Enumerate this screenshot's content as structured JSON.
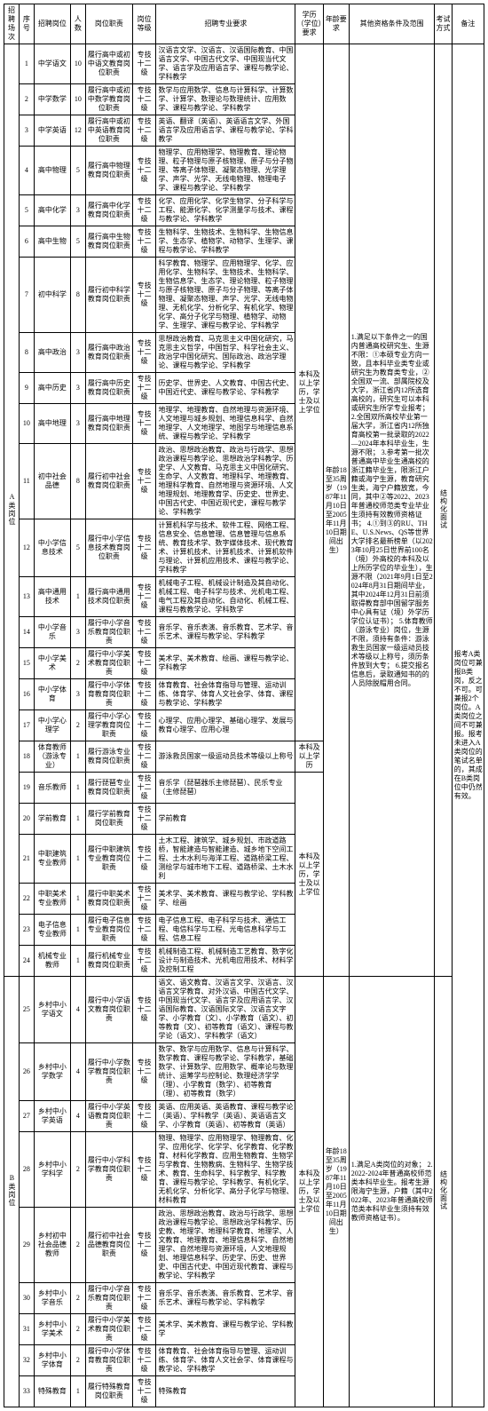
{
  "headers": {
    "col1": "招聘场次",
    "col2": "序号",
    "col3": "招聘岗位",
    "col4": "人数",
    "col5": "岗位职责",
    "col6": "岗位等级",
    "col7": "招聘专业要求",
    "col8": "学历（学位）要求",
    "col9": "年龄要求",
    "col10": "其他资格条件及范围",
    "col11": "考试方式",
    "col12": "备注"
  },
  "catA": "A类岗位",
  "catB": "B类岗位",
  "gradeA": "专技十二级",
  "gradeB": "专技十二级",
  "eduA": "本科及以上学历，学士及以上学位",
  "eduA2": "本科及以上学历",
  "eduB": "本科及以上学历，学士及以上学位",
  "ageA": "年龄18至35周岁（1987年11月10日至2005年11月10日期间出生）",
  "condA": "1.满足以下条件之一的国内普通高校研究生、生源不限：①本硕专业方向一致，且本科毕业类专业或研究生为教育类专业，②全国双一流、部属院校及大学，浙江省内12所选育高校的，研究生可以本科或研究生所学专业报考；\n2.全国双所高校毕业第一届大学，浙江省内12所独育高校第一批录取的2022—2024年本科毕业生，生源不限；\n3.参考第一批次普通高中毕业生通高校的浙江籍毕业生，限浙江户籍或海宁生源，教育研究生类，海宁户籍放宽，今同，其中②等2022、2023年普通校师范类专业毕业生须持有效教师资格证书；\n4.①到③的RU、THE、U.S.News、QS等世界大学排名最新榜单（以2023年10月25日世界前100名（境）外高校的本科及以上所历学位的毕业生），生源不限（2021年9月1日至2024年8月31日期间毕业，其中2024年12月31日前须取得教育部中国留学服务中心具有证（境）外学历学位认证书）；\n5.体育教师（游泳专业）岗位，生源不限，须持有条件：游泳救生员国家一级运动员技术等级以上称号，须历条件放到大专；\n6.提交报名信息后，录取通知书的的人员除脱帽用合同。",
  "examA": "结构化面试",
  "remarkA": "报考A类岗位可兼报B类岗，反之不可。可兼报2个岗位。A类岗位之间不可兼报。报考未进入A类岗位的笔试名单的，其成在B类岗位中仍然有效。",
  "condB": "1.满足A类岗位的对象；\n2.2022-2024年普通高校师范类本科毕业生。报考生源限海宁生源，户籍（其中2022年、2023年普通高校师范类本科毕业生须持有效教师资格证书）。",
  "examB": "结构化面试",
  "rowsA": [
    {
      "n": "1",
      "post": "中学语文",
      "num": "10",
      "duty": "履行高中或初中语文教育岗位职责",
      "req": "汉语言文学、汉语言、汉语国际教育、中国语言文学、中国古代文学、中国现当代文学、语言学及应用语言学、课程与教学论、学科教学"
    },
    {
      "n": "2",
      "post": "中学数学",
      "num": "10",
      "duty": "履行高中或初中数学教育岗位职责",
      "req": "数学与应用数学、信息与计算科学、计算数学、计算学、数理论与数理统计、应用数学、课程与教学论、学科教学"
    },
    {
      "n": "3",
      "post": "中学英语",
      "num": "12",
      "duty": "履行高中或初中英语教育岗位职责",
      "req": "英语、翻译（英语）、英语语言文学、外国语言学及应用语言学、课程与教学论、学科教学"
    },
    {
      "n": "4",
      "post": "高中物理",
      "num": "5",
      "duty": "履行高中物理教育岗位职责",
      "req": "物理学、应用物理学、物理教育、理论物理、粒子物理与原子核物理、原子与分子物理、等离子体物理、凝聚态物理、光学理学、声学、光学、无线电物理、物理电子学、课程与教学论、学科教学"
    },
    {
      "n": "5",
      "post": "高中化学",
      "num": "3",
      "duty": "履行高中化学教育岗位职责",
      "req": "化学、应用化学、化学生物学、分子科学与工程、能源化学、化学测量学与技术、课程与教学论、学科教学"
    },
    {
      "n": "6",
      "post": "高中生物",
      "num": "5",
      "duty": "履行高中生物教育岗位职责",
      "req": "生物科学、生物技术、生物科学、生物信息学、生态学、植物学、动物学、生理学、课程与教学论、学科教学"
    },
    {
      "n": "7",
      "post": "初中科学",
      "num": "8",
      "duty": "履行初中科学教育岗位职责",
      "req": "科学教育、物理学、应用物理学、化学、应用化学、生物科学、生物技术、生物科学、生物信息学、生态学、理论物理、粒子物理与原子核物理、原子与分子物理、等离子体物理、凝聚态物理、声学、光学、无线电物理、无机化学、分析化学、有机化学、物理化学、高分子化学与物理、植物学、动物学、生理学、课程与教学论、学科教学"
    },
    {
      "n": "8",
      "post": "高中政治",
      "num": "3",
      "duty": "履行高中政治教育岗位职责",
      "req": "思想政治教育、马克思主义中国化研究，马克思主义哲学，中国哲学、科学社会主义、政治学中国化研究、国际政治、政治学理论、课程与教学论、学科教学"
    },
    {
      "n": "9",
      "post": "高中历史",
      "num": "3",
      "duty": "履行高中历史教育岗位职责",
      "req": "历史学、世界史、人文教育、中国古代史、中国近代史、课程与教学论、学科教学"
    },
    {
      "n": "10",
      "post": "高中地理",
      "num": "3",
      "duty": "履行高中地理教育岗位职责",
      "req": "地理学、地理教育、自然地理与资源环境、人文地理与城乡规划、地理信息科学、自然地理学、人文地理学、地图学与地理信息系统、课程与教学论、学科教学"
    },
    {
      "n": "11",
      "post": "初中社会品德",
      "num": "8",
      "duty": "履行初中社会教育岗位职责",
      "req": "政治、思想政治教育、政治与行政学、思想政治课程与教学论、思想政治学科教学、历史学、人文教育、马克思主义中国化研究、生命学、人文教育、地理科学、地理教育、地理科学教育、自然地理与资源环境、人文地理规划、地理教育学、历史史、世界史、中国古代史、中国近现代史，课程与教学论、学科教学"
    },
    {
      "n": "12",
      "post": "中小学信息技术",
      "num": "5",
      "duty": "履行中小学信息技术教育岗位职责",
      "req": "计算机科学与技术、软件工程、网络工程、信息安全、信息管理、信息管理与信息系统、教育技术学、数字媒体技术、现代教育术、计算机技术、计算机技术、计算机软件与理论、计算机应用技术、课程与教学论、学科教学"
    },
    {
      "n": "13",
      "post": "高中通用技术",
      "num": "1",
      "duty": "履行高中通用技术岗位职责",
      "req": "机械电子工程、机械设计制造及其自动化、机械工程、电子科学与技术、光机电工程、电气工程及其自动化、自动化、机械工程、课程与教教学论、学科数学"
    },
    {
      "n": "14",
      "post": "中小学音乐",
      "num": "3",
      "duty": "履行中小学音乐教育岗位职责",
      "req": "音乐学、音乐表演、音乐教育、艺术学、音乐艺术、课程与教学论、学科教学"
    },
    {
      "n": "15",
      "post": "中小学美术",
      "num": "2",
      "duty": "履行中小学美术教育岗位职责",
      "req": "美术学、美术教育、绘画、课程与教学论、学科教学"
    },
    {
      "n": "16",
      "post": "中小学体育",
      "num": "3",
      "duty": "履行中小学体育教育岗位职责",
      "req": "体育教育、社会体育指导与管理、运动训练、体育学、体育人文社会学、体育、课程与教学论、学科教学"
    },
    {
      "n": "17",
      "post": "中小学心理学",
      "num": "2",
      "duty": "履行中小学心理学教育岗位职责",
      "req": "心理学、应用心理学、基础心理学、发展与教育心理学、应用心理"
    },
    {
      "n": "18",
      "post": "体育教师（游泳专业）",
      "num": "1",
      "duty": "履行游泳专业教育岗位职责",
      "req": "游泳救员国家一级运动员技术等级以上称号",
      "edu": "本科及以上学历"
    },
    {
      "n": "19",
      "post": "音乐教师",
      "num": "1",
      "duty": "履行琵琶专业教育岗位职责",
      "req": "音乐学（琵琶器乐主修琵琶）、民乐专业（主修琵琶）"
    },
    {
      "n": "20",
      "post": "学前教育",
      "num": "1",
      "duty": "履行学前教育岗位职责",
      "req": "学前教育"
    },
    {
      "n": "21",
      "post": "中职建筑专业教师",
      "num": "1",
      "duty": "履行中职建筑专业教育岗位职责",
      "req": "土木工程、建筑学、城乡规划、市政道路桥，智能建造与智能建造、城乡地下空间工程、土木水利与海洋工程、道路桥梁工程、测绘学与城市地下工程、道路桥梁、土木水利"
    },
    {
      "n": "22",
      "post": "中职美术专业教师",
      "num": "1",
      "duty": "履行中职美术教育岗位职责",
      "req": "美术学、美术教育、课程与教学论、学科教学、绘画"
    },
    {
      "n": "23",
      "post": "电子信息专业教师",
      "num": "1",
      "duty": "履行电子信息专业教育岗位职责",
      "req": "电子信息工程、电子科学与技术、通信工程、电信科学与工程、光电信息科学与工程、信息工程"
    },
    {
      "n": "24",
      "post": "机械专业教师",
      "num": "1",
      "duty": "履行机械专业教育岗位职责",
      "req": "机械制造工程、机械制造工艺教育、数字化设计与制造技术、光机电应用技术、材料学及控制工程"
    }
  ],
  "rowsB": [
    {
      "n": "25",
      "post": "乡村中小学语文",
      "num": "4",
      "duty": "履行中小学语文教育岗位职责",
      "req": "语文、语文教育、汉语言文学、汉语言、汉语言文学教育、对外汉语、中国古代文学、中国现当代文学、语言学及应用语言学、汉语国际教育、汉语国际文学、汉语言文字学、小学教育（文）、小学教育（语文）、初等教育（文）、初等教育（语文）、课程与教学论（语文）、学科教学（语文）"
    },
    {
      "n": "26",
      "post": "乡村中小学数学",
      "num": "4",
      "duty": "履行中小学数学教育岗位职责",
      "req": "数学、数学与应用数学、信息与计算科学、数学教育、课程与教学论、学科教学，基础数学、计算数学、应用数学、概率论与数理统计、运筹学与控制论、数理经济学学（理）、小学教育（数学）、初等教育（理）、初等教育（数学）"
    },
    {
      "n": "27",
      "post": "乡村中小学英语",
      "num": "4",
      "duty": "履行中小学英语教育岗位职责",
      "req": "英语、应用英语、英语教育、课程与教学论（英语）、学科教学（英语）、英语语言文学、小学教育（英语）、初等教育（英语）"
    },
    {
      "n": "28",
      "post": "乡村中小学科学",
      "num": "2",
      "duty": "履行中小学科学教育岗位职责",
      "req": "物理、物理学、应用物理学、物理教育、化学、应用化学、化学学、化学教育、化学教育、材料化学教育、应用生物教育、生物学与学教育、生物教病、生物科学、生物学技术、教育、生命科学、科学教学、科学教育、课程与教学论、学科教学、有机化学、无机化学、分析化学、高分子化学与物理、材料教育"
    },
    {
      "n": "29",
      "post": "乡村初中社会品德教师",
      "num": "2",
      "duty": "履行初中社会品德教育岗位职责",
      "req": "政治、思想政治教育、政治与行政学、思想政治课程与教学论、思想政治学科教学、历史教、地理学、地理科学教育、地理学、人文教育、地理教育、地理信息科学、自然地理学、自然地理与资源环境，人文地理规划、地理信息科学、历史学、历史、世界史、中国古代史、中国近现代教育、课程与教学论、学科教学"
    },
    {
      "n": "30",
      "post": "乡村中小学音乐",
      "num": "2",
      "duty": "履行中小学音乐教育岗位职责",
      "req": "音乐学、音乐表演、音乐教育、艺术学、音乐艺术、课程与教学论、学科教学"
    },
    {
      "n": "31",
      "post": "乡村中小学美术",
      "num": "2",
      "duty": "履行中小学美术教育岗位职责",
      "req": "美术学、美术教育、课程与教学论、学科教学"
    },
    {
      "n": "32",
      "post": "乡村中小学体育",
      "num": "2",
      "duty": "履行中小学体育教育岗位职责",
      "req": "体育教育、社会体育指导与管理、运动训练、体育学、体育人文社会学、体育课程与教学论、学科教学"
    },
    {
      "n": "33",
      "post": "特殊教育",
      "num": "1",
      "duty": "履行特殊教育岗位职责",
      "req": "特殊教育"
    }
  ]
}
